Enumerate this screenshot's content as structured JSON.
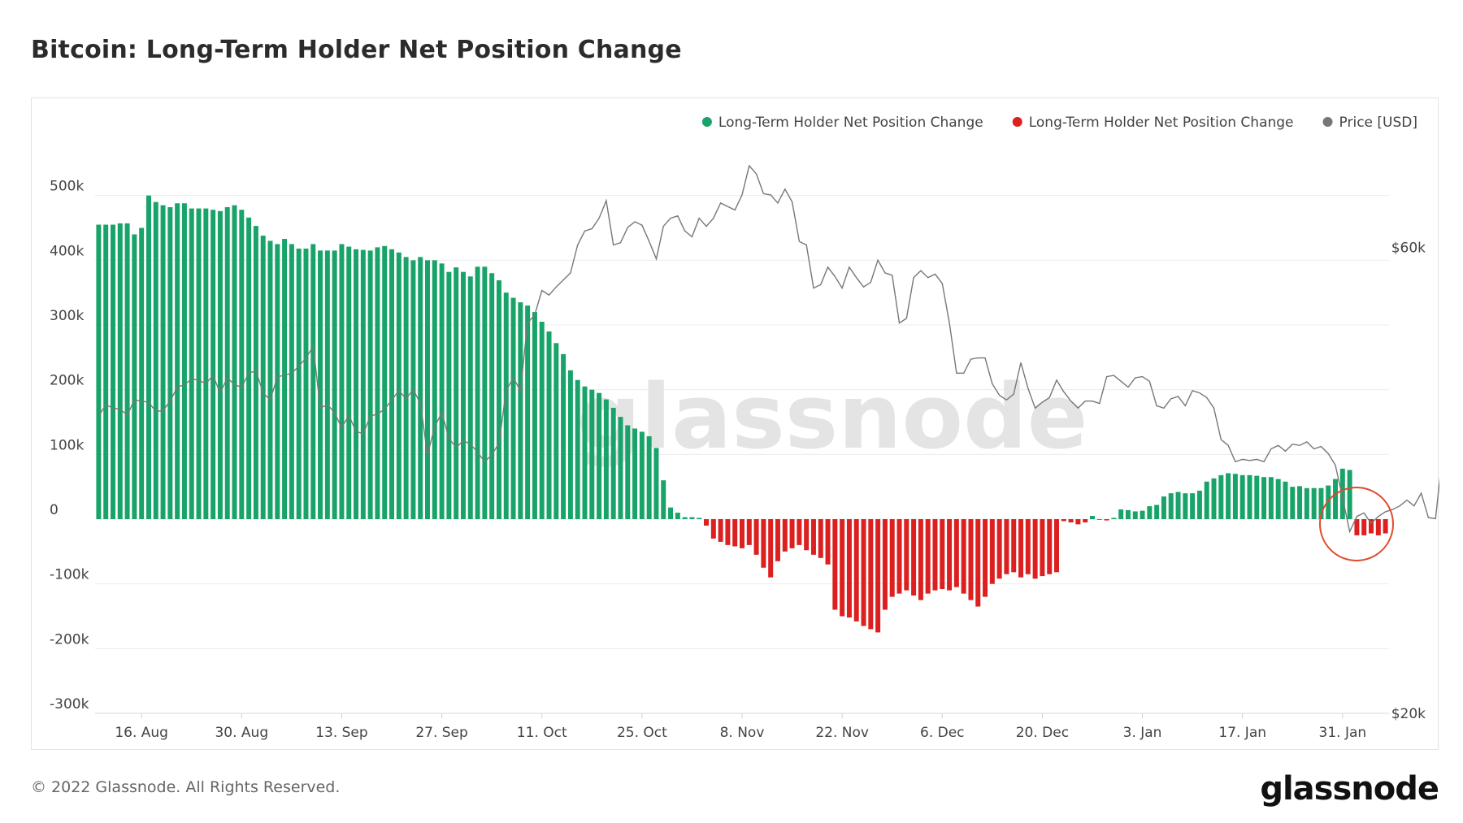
{
  "title": "Bitcoin: Long-Term Holder Net Position Change",
  "copyright": "© 2022 Glassnode. All Rights Reserved.",
  "brand": "glassnode",
  "watermark": "glassnode",
  "colors": {
    "positive": "#18a469",
    "negative": "#dc1f1f",
    "price": "#777777",
    "grid": "#ececec",
    "highlight": "#e04a2c"
  },
  "chart_data": {
    "type": "bar",
    "title": "Bitcoin: Long-Term Holder Net Position Change",
    "x_start_label": "2021-08-10",
    "ylim": [
      -300000,
      600000
    ],
    "y2lim": [
      20000,
      70000
    ],
    "y_ticks": [
      {
        "value": 500000,
        "label": "500k"
      },
      {
        "value": 400000,
        "label": "400k"
      },
      {
        "value": 300000,
        "label": "300k"
      },
      {
        "value": 200000,
        "label": "200k"
      },
      {
        "value": 100000,
        "label": "100k"
      },
      {
        "value": 0,
        "label": "0"
      },
      {
        "value": -100000,
        "label": "-100k"
      },
      {
        "value": -200000,
        "label": "-200k"
      },
      {
        "value": -300000,
        "label": "-300k"
      }
    ],
    "y2_ticks": [
      {
        "value": 60000,
        "label": "$60k"
      },
      {
        "value": 20000,
        "label": "$20k"
      }
    ],
    "x_ticks": [
      {
        "day": 6,
        "label": "16. Aug"
      },
      {
        "day": 20,
        "label": "30. Aug"
      },
      {
        "day": 34,
        "label": "13. Sep"
      },
      {
        "day": 48,
        "label": "27. Sep"
      },
      {
        "day": 62,
        "label": "11. Oct"
      },
      {
        "day": 76,
        "label": "25. Oct"
      },
      {
        "day": 90,
        "label": "8. Nov"
      },
      {
        "day": 104,
        "label": "22. Nov"
      },
      {
        "day": 118,
        "label": "6. Dec"
      },
      {
        "day": 132,
        "label": "20. Dec"
      },
      {
        "day": 146,
        "label": "3. Jan"
      },
      {
        "day": 160,
        "label": "17. Jan"
      },
      {
        "day": 174,
        "label": "31. Jan"
      }
    ],
    "legend": [
      {
        "label": "Long-Term Holder Net Position Change",
        "color": "#18a469"
      },
      {
        "label": "Long-Term Holder Net Position Change",
        "color": "#dc1f1f"
      },
      {
        "label": "Price [USD]",
        "color": "#777777"
      }
    ],
    "legend_position": "top-right",
    "grid": true,
    "net_position_change": [
      455000,
      455000,
      455000,
      457000,
      457000,
      440000,
      450000,
      500000,
      490000,
      485000,
      482000,
      488000,
      488000,
      480000,
      480000,
      480000,
      478000,
      476000,
      482000,
      485000,
      478000,
      466000,
      453000,
      438000,
      430000,
      425000,
      433000,
      425000,
      418000,
      418000,
      425000,
      415000,
      415000,
      415000,
      425000,
      421000,
      417000,
      416000,
      415000,
      420000,
      422000,
      417000,
      412000,
      405000,
      400000,
      405000,
      400000,
      400000,
      395000,
      382000,
      389000,
      382000,
      375000,
      390000,
      390000,
      380000,
      369000,
      350000,
      342000,
      335000,
      330000,
      320000,
      305000,
      290000,
      272000,
      255000,
      230000,
      215000,
      205000,
      200000,
      195000,
      185000,
      172000,
      158000,
      145000,
      140000,
      135000,
      128000,
      110000,
      60000,
      18000,
      10000,
      3000,
      3000,
      2000,
      -10000,
      -30000,
      -35000,
      -40000,
      -42000,
      -45000,
      -40000,
      -55000,
      -75000,
      -90000,
      -65000,
      -50000,
      -45000,
      -40000,
      -48000,
      -55000,
      -60000,
      -70000,
      -140000,
      -150000,
      -152000,
      -158000,
      -165000,
      -170000,
      -175000,
      -140000,
      -120000,
      -115000,
      -110000,
      -118000,
      -125000,
      -115000,
      -110000,
      -108000,
      -110000,
      -105000,
      -115000,
      -125000,
      -135000,
      -120000,
      -100000,
      -92000,
      -85000,
      -82000,
      -90000,
      -85000,
      -92000,
      -88000,
      -85000,
      -82000,
      -3000,
      -5000,
      -8000,
      -5000,
      5000,
      0,
      -2000,
      2000,
      15000,
      14000,
      12000,
      13000,
      20000,
      22000,
      35000,
      40000,
      42000,
      40000,
      40000,
      44000,
      58000,
      63000,
      68000,
      71000,
      70000,
      68000,
      68000,
      67000,
      65000,
      65000,
      62000,
      58000,
      50000,
      51000,
      48000,
      48000,
      48000,
      52000,
      62000,
      78000,
      76000,
      -25000,
      -25000,
      -22000,
      -25000,
      -22000
    ],
    "price_usd": [
      45500,
      46500,
      46200,
      46100,
      45600,
      46900,
      46800,
      46700,
      45900,
      46000,
      46800,
      48000,
      48200,
      48700,
      48600,
      48300,
      49000,
      47500,
      48800,
      48200,
      48000,
      49200,
      49400,
      47500,
      46900,
      48900,
      49000,
      49200,
      49800,
      50500,
      51500,
      46200,
      46500,
      45800,
      44500,
      45600,
      44200,
      44000,
      45500,
      45700,
      46100,
      46900,
      47700,
      47000,
      47800,
      46600,
      42200,
      44600,
      45800,
      43600,
      42800,
      43400,
      43100,
      42400,
      41600,
      42200,
      43200,
      47700,
      48800,
      47700,
      53500,
      54200,
      56300,
      55900,
      56600,
      57200,
      57800,
      60200,
      61400,
      61600,
      62500,
      64000,
      60200,
      60400,
      61700,
      62200,
      61900,
      60500,
      59000,
      61800,
      62500,
      62700,
      61400,
      60900,
      62500,
      61800,
      62500,
      63800,
      63500,
      63200,
      64500,
      67000,
      66300,
      64600,
      64500,
      63800,
      65000,
      63900,
      60500,
      60200,
      56500,
      56800,
      58300,
      57500,
      56500,
      58300,
      57400,
      56600,
      57000,
      58900,
      57800,
      57600,
      53500,
      53900,
      57400,
      58000,
      57400,
      57700,
      56900,
      53500,
      49200,
      49200,
      50400,
      50500,
      50500,
      48300,
      47300,
      46900,
      47400,
      50100,
      47900,
      46200,
      46700,
      47100,
      48600,
      47600,
      46800,
      46200,
      46800,
      46800,
      46600,
      48900,
      49000,
      48500,
      48000,
      48800,
      48900,
      48500,
      46400,
      46200,
      47000,
      47200,
      46400,
      47700,
      47500,
      47100,
      46200,
      43500,
      43000,
      41600,
      41800,
      41700,
      41800,
      41600,
      42700,
      43000,
      42500,
      43100,
      43000,
      43300,
      42700,
      42900,
      42300,
      41300,
      38500,
      35600,
      36900,
      37200,
      36300,
      36900,
      37300,
      37500,
      37800,
      38300,
      37800,
      38900,
      36800,
      36700,
      42400,
      42500,
      42300,
      42400,
      42300
    ]
  }
}
